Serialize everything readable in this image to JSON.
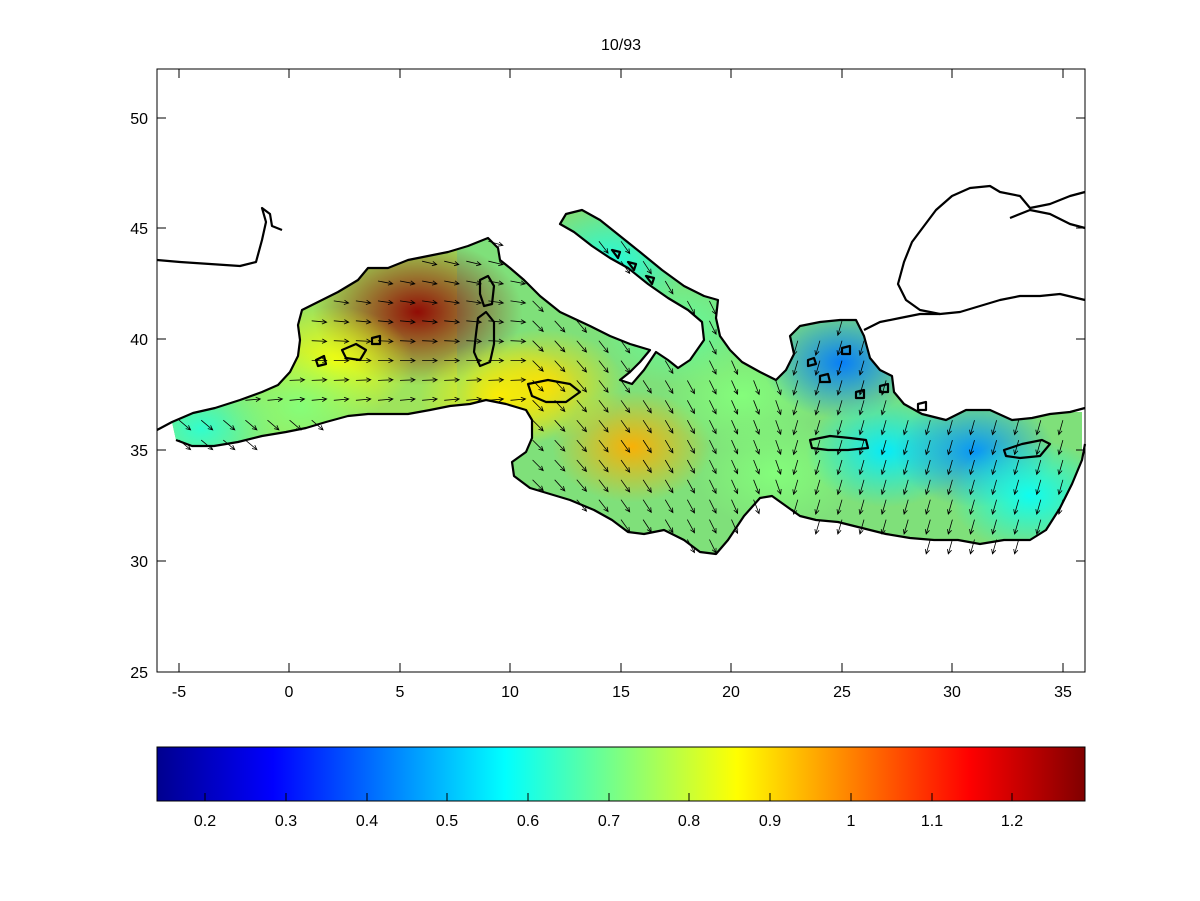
{
  "chart_data": [
    {
      "type": "heatmap",
      "title": "10/93",
      "xlabel": "",
      "ylabel": "",
      "xlim": [
        -6,
        36
      ],
      "ylim": [
        25,
        52.3
      ],
      "x_ticks": [
        -5,
        0,
        5,
        10,
        15,
        20,
        25,
        30,
        35
      ],
      "y_ticks": [
        25,
        30,
        35,
        40,
        45,
        50
      ],
      "x_tick_labels": [
        "-5",
        "0",
        "5",
        "10",
        "15",
        "20",
        "25",
        "30",
        "35"
      ],
      "y_tick_labels": [
        "25",
        "30",
        "35",
        "40",
        "45",
        "50"
      ],
      "grid": false,
      "colormap": "jet",
      "clim": [
        0.14,
        1.29
      ],
      "overlay": "quiver (direction arrows)",
      "hotspots": [
        {
          "lon": 5.8,
          "lat": 41.3,
          "value": 1.27
        },
        {
          "lon": 15.5,
          "lat": 35.2,
          "value": 0.95
        },
        {
          "lon": 11.5,
          "lat": 38.0,
          "value": 0.9
        },
        {
          "lon": 2.0,
          "lat": 39.0,
          "value": 0.85
        },
        {
          "lon": -4.0,
          "lat": 36.0,
          "value": 0.62
        },
        {
          "lon": 0.5,
          "lat": 37.0,
          "value": 0.72
        },
        {
          "lon": 14.5,
          "lat": 43.5,
          "value": 0.6
        },
        {
          "lon": 17.5,
          "lat": 40.5,
          "value": 0.68
        },
        {
          "lon": 20.5,
          "lat": 37.5,
          "value": 0.72
        },
        {
          "lon": 22.0,
          "lat": 34.0,
          "value": 0.72
        },
        {
          "lon": 25.0,
          "lat": 39.0,
          "value": 0.42
        },
        {
          "lon": 27.0,
          "lat": 35.0,
          "value": 0.55
        },
        {
          "lon": 31.0,
          "lat": 35.0,
          "value": 0.45
        },
        {
          "lon": 33.5,
          "lat": 33.0,
          "value": 0.58
        },
        {
          "lon": 9.5,
          "lat": 37.5,
          "value": 0.88
        }
      ]
    },
    {
      "type": "colorbar",
      "colormap": "jet",
      "range": [
        0.14,
        1.29
      ],
      "ticks": [
        0.2,
        0.3,
        0.4,
        0.5,
        0.6,
        0.7,
        0.8,
        0.9,
        1,
        1.1,
        1.2
      ],
      "tick_labels": [
        "0.2",
        "0.3",
        "0.4",
        "0.5",
        "0.6",
        "0.7",
        "0.8",
        "0.9",
        "1",
        "1.1",
        "1.2"
      ]
    }
  ]
}
